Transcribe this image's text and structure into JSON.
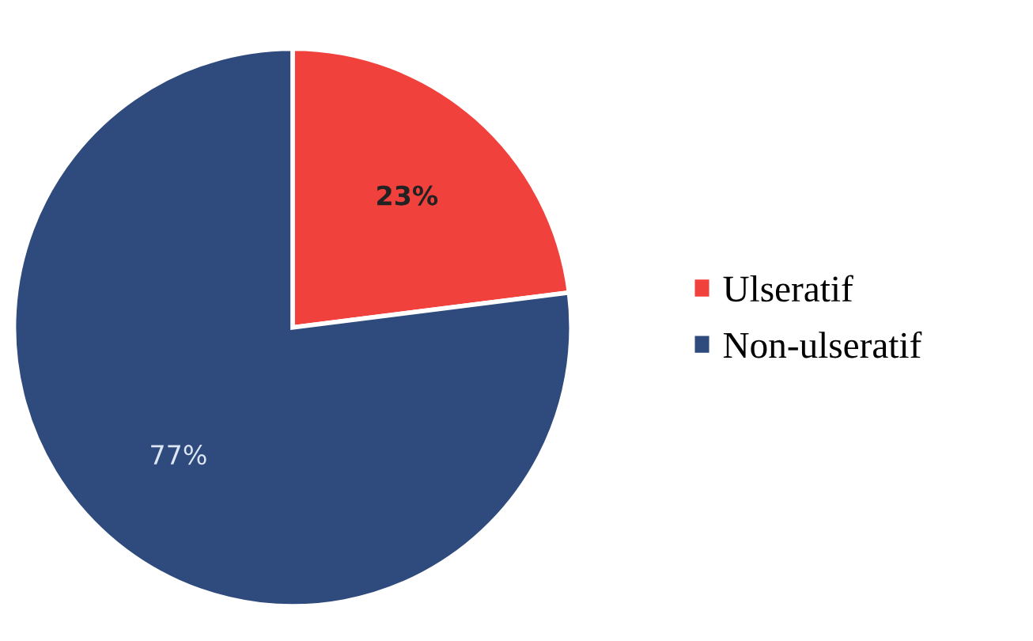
{
  "chart_data": {
    "type": "pie",
    "categories": [
      "Ulseratif",
      "Non-ulseratif"
    ],
    "values": [
      23,
      77
    ],
    "value_labels": [
      "23%",
      "77%"
    ],
    "colors": [
      "#f0413c",
      "#2f4a7c"
    ],
    "legend": "right"
  }
}
